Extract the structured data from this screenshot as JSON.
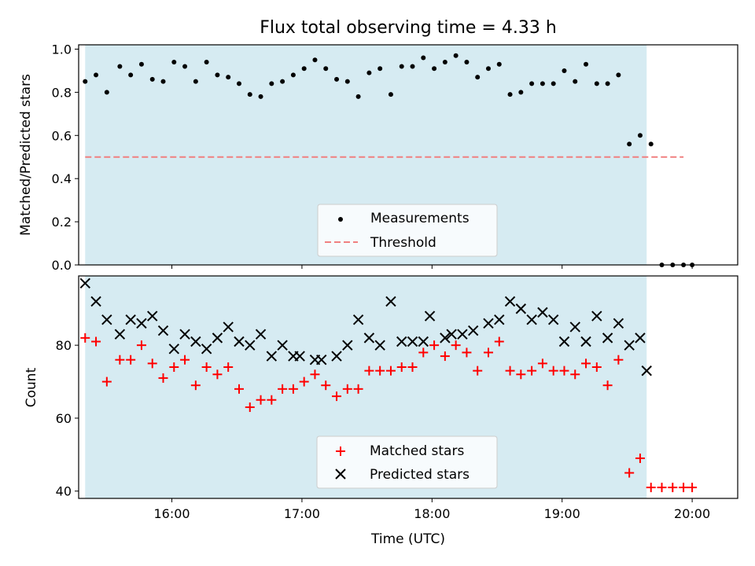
{
  "chart_data": [
    {
      "type": "scatter",
      "title": "Flux total observing time = 4.33 h",
      "xlabel": "",
      "ylabel": "Matched/Predicted stars",
      "ylim": [
        0,
        1.02
      ],
      "yticks": [
        "0.0",
        "0.2",
        "0.4",
        "0.6",
        "0.8",
        "1.0"
      ],
      "xlim": [
        "15:17",
        "20:21"
      ],
      "xticks": [
        "16:00",
        "17:00",
        "18:00",
        "19:00",
        "20:00"
      ],
      "observing_window": [
        "15:20",
        "19:39"
      ],
      "legend": {
        "placement": "lower center",
        "entries": [
          "Measurements",
          "Threshold"
        ]
      },
      "series": [
        {
          "name": "Measurements",
          "marker": "dot",
          "color": "#000000",
          "points": [
            [
              "15:20",
              0.85
            ],
            [
              "15:25",
              0.88
            ],
            [
              "15:30",
              0.8
            ],
            [
              "15:36",
              0.92
            ],
            [
              "15:41",
              0.88
            ],
            [
              "15:46",
              0.93
            ],
            [
              "15:51",
              0.86
            ],
            [
              "15:56",
              0.85
            ],
            [
              "16:01",
              0.94
            ],
            [
              "16:06",
              0.92
            ],
            [
              "16:11",
              0.85
            ],
            [
              "16:16",
              0.94
            ],
            [
              "16:21",
              0.88
            ],
            [
              "16:26",
              0.87
            ],
            [
              "16:31",
              0.84
            ],
            [
              "16:36",
              0.79
            ],
            [
              "16:41",
              0.78
            ],
            [
              "16:46",
              0.84
            ],
            [
              "16:51",
              0.85
            ],
            [
              "16:56",
              0.88
            ],
            [
              "17:01",
              0.91
            ],
            [
              "17:06",
              0.95
            ],
            [
              "17:11",
              0.91
            ],
            [
              "17:16",
              0.86
            ],
            [
              "17:21",
              0.85
            ],
            [
              "17:26",
              0.78
            ],
            [
              "17:31",
              0.89
            ],
            [
              "17:36",
              0.91
            ],
            [
              "17:41",
              0.79
            ],
            [
              "17:46",
              0.92
            ],
            [
              "17:51",
              0.92
            ],
            [
              "17:56",
              0.96
            ],
            [
              "18:01",
              0.91
            ],
            [
              "18:06",
              0.94
            ],
            [
              "18:11",
              0.97
            ],
            [
              "18:16",
              0.94
            ],
            [
              "18:21",
              0.87
            ],
            [
              "18:26",
              0.91
            ],
            [
              "18:31",
              0.93
            ],
            [
              "18:36",
              0.79
            ],
            [
              "18:41",
              0.8
            ],
            [
              "18:46",
              0.84
            ],
            [
              "18:51",
              0.84
            ],
            [
              "18:56",
              0.84
            ],
            [
              "19:01",
              0.9
            ],
            [
              "19:06",
              0.85
            ],
            [
              "19:11",
              0.93
            ],
            [
              "19:16",
              0.84
            ],
            [
              "19:21",
              0.84
            ],
            [
              "19:26",
              0.88
            ],
            [
              "19:31",
              0.56
            ],
            [
              "19:36",
              0.6
            ],
            [
              "19:41",
              0.56
            ],
            [
              "19:46",
              0.0
            ],
            [
              "19:51",
              0.0
            ],
            [
              "19:56",
              0.0
            ],
            [
              "20:00",
              0.0
            ]
          ]
        },
        {
          "name": "Threshold",
          "marker": "dashed-line",
          "color": "#f08080",
          "points": [
            [
              "15:20",
              0.5
            ],
            [
              "19:56",
              0.5
            ]
          ]
        }
      ]
    },
    {
      "type": "scatter",
      "title": "",
      "xlabel": "Time (UTC)",
      "ylabel": "Count",
      "ylim": [
        38,
        99
      ],
      "yticks": [
        "40",
        "60",
        "80"
      ],
      "xlim": [
        "15:17",
        "20:21"
      ],
      "xticks": [
        "16:00",
        "17:00",
        "18:00",
        "19:00",
        "20:00"
      ],
      "observing_window": [
        "15:20",
        "19:39"
      ],
      "legend": {
        "placement": "lower center",
        "entries": [
          "Matched stars",
          "Predicted stars"
        ]
      },
      "series": [
        {
          "name": "Matched stars",
          "marker": "plus",
          "color": "#ff0000",
          "points": [
            [
              "15:20",
              82
            ],
            [
              "15:25",
              81
            ],
            [
              "15:30",
              70
            ],
            [
              "15:36",
              76
            ],
            [
              "15:41",
              76
            ],
            [
              "15:46",
              80
            ],
            [
              "15:51",
              75
            ],
            [
              "15:56",
              71
            ],
            [
              "16:01",
              74
            ],
            [
              "16:06",
              76
            ],
            [
              "16:11",
              69
            ],
            [
              "16:16",
              74
            ],
            [
              "16:21",
              72
            ],
            [
              "16:26",
              74
            ],
            [
              "16:31",
              68
            ],
            [
              "16:36",
              63
            ],
            [
              "16:41",
              65
            ],
            [
              "16:46",
              65
            ],
            [
              "16:51",
              68
            ],
            [
              "16:56",
              68
            ],
            [
              "17:01",
              70
            ],
            [
              "17:06",
              72
            ],
            [
              "17:11",
              69
            ],
            [
              "17:16",
              66
            ],
            [
              "17:21",
              68
            ],
            [
              "17:26",
              68
            ],
            [
              "17:31",
              73
            ],
            [
              "17:36",
              73
            ],
            [
              "17:41",
              73
            ],
            [
              "17:46",
              74
            ],
            [
              "17:51",
              74
            ],
            [
              "17:56",
              78
            ],
            [
              "18:01",
              80
            ],
            [
              "18:06",
              77
            ],
            [
              "18:11",
              80
            ],
            [
              "18:16",
              78
            ],
            [
              "18:21",
              73
            ],
            [
              "18:26",
              78
            ],
            [
              "18:31",
              81
            ],
            [
              "18:36",
              73
            ],
            [
              "18:41",
              72
            ],
            [
              "18:46",
              73
            ],
            [
              "18:51",
              75
            ],
            [
              "18:56",
              73
            ],
            [
              "19:01",
              73
            ],
            [
              "19:06",
              72
            ],
            [
              "19:11",
              75
            ],
            [
              "19:16",
              74
            ],
            [
              "19:21",
              69
            ],
            [
              "19:26",
              76
            ],
            [
              "19:31",
              45
            ],
            [
              "19:36",
              49
            ],
            [
              "19:41",
              41
            ],
            [
              "19:46",
              41
            ],
            [
              "19:51",
              41
            ],
            [
              "19:56",
              41
            ],
            [
              "20:00",
              41
            ]
          ]
        },
        {
          "name": "Predicted stars",
          "marker": "x",
          "color": "#000000",
          "points": [
            [
              "15:20",
              97
            ],
            [
              "15:25",
              92
            ],
            [
              "15:30",
              87
            ],
            [
              "15:36",
              83
            ],
            [
              "15:41",
              87
            ],
            [
              "15:46",
              86
            ],
            [
              "15:51",
              88
            ],
            [
              "15:56",
              84
            ],
            [
              "16:01",
              79
            ],
            [
              "16:06",
              83
            ],
            [
              "16:11",
              81
            ],
            [
              "16:16",
              79
            ],
            [
              "16:21",
              82
            ],
            [
              "16:26",
              85
            ],
            [
              "16:31",
              81
            ],
            [
              "16:36",
              80
            ],
            [
              "16:41",
              83
            ],
            [
              "16:46",
              77
            ],
            [
              "16:51",
              80
            ],
            [
              "16:56",
              77
            ],
            [
              "16:59",
              77
            ],
            [
              "17:06",
              76
            ],
            [
              "17:09",
              76
            ],
            [
              "17:16",
              77
            ],
            [
              "17:21",
              80
            ],
            [
              "17:26",
              87
            ],
            [
              "17:31",
              82
            ],
            [
              "17:36",
              80
            ],
            [
              "17:41",
              92
            ],
            [
              "17:46",
              81
            ],
            [
              "17:51",
              81
            ],
            [
              "17:56",
              81
            ],
            [
              "17:59",
              88
            ],
            [
              "18:06",
              82
            ],
            [
              "18:09",
              83
            ],
            [
              "18:14",
              83
            ],
            [
              "18:19",
              84
            ],
            [
              "18:26",
              86
            ],
            [
              "18:31",
              87
            ],
            [
              "18:36",
              92
            ],
            [
              "18:41",
              90
            ],
            [
              "18:46",
              87
            ],
            [
              "18:51",
              89
            ],
            [
              "18:56",
              87
            ],
            [
              "19:01",
              81
            ],
            [
              "19:06",
              85
            ],
            [
              "19:11",
              81
            ],
            [
              "19:16",
              88
            ],
            [
              "19:21",
              82
            ],
            [
              "19:26",
              86
            ],
            [
              "19:31",
              80
            ],
            [
              "19:36",
              82
            ],
            [
              "19:39",
              73
            ]
          ]
        }
      ]
    }
  ]
}
